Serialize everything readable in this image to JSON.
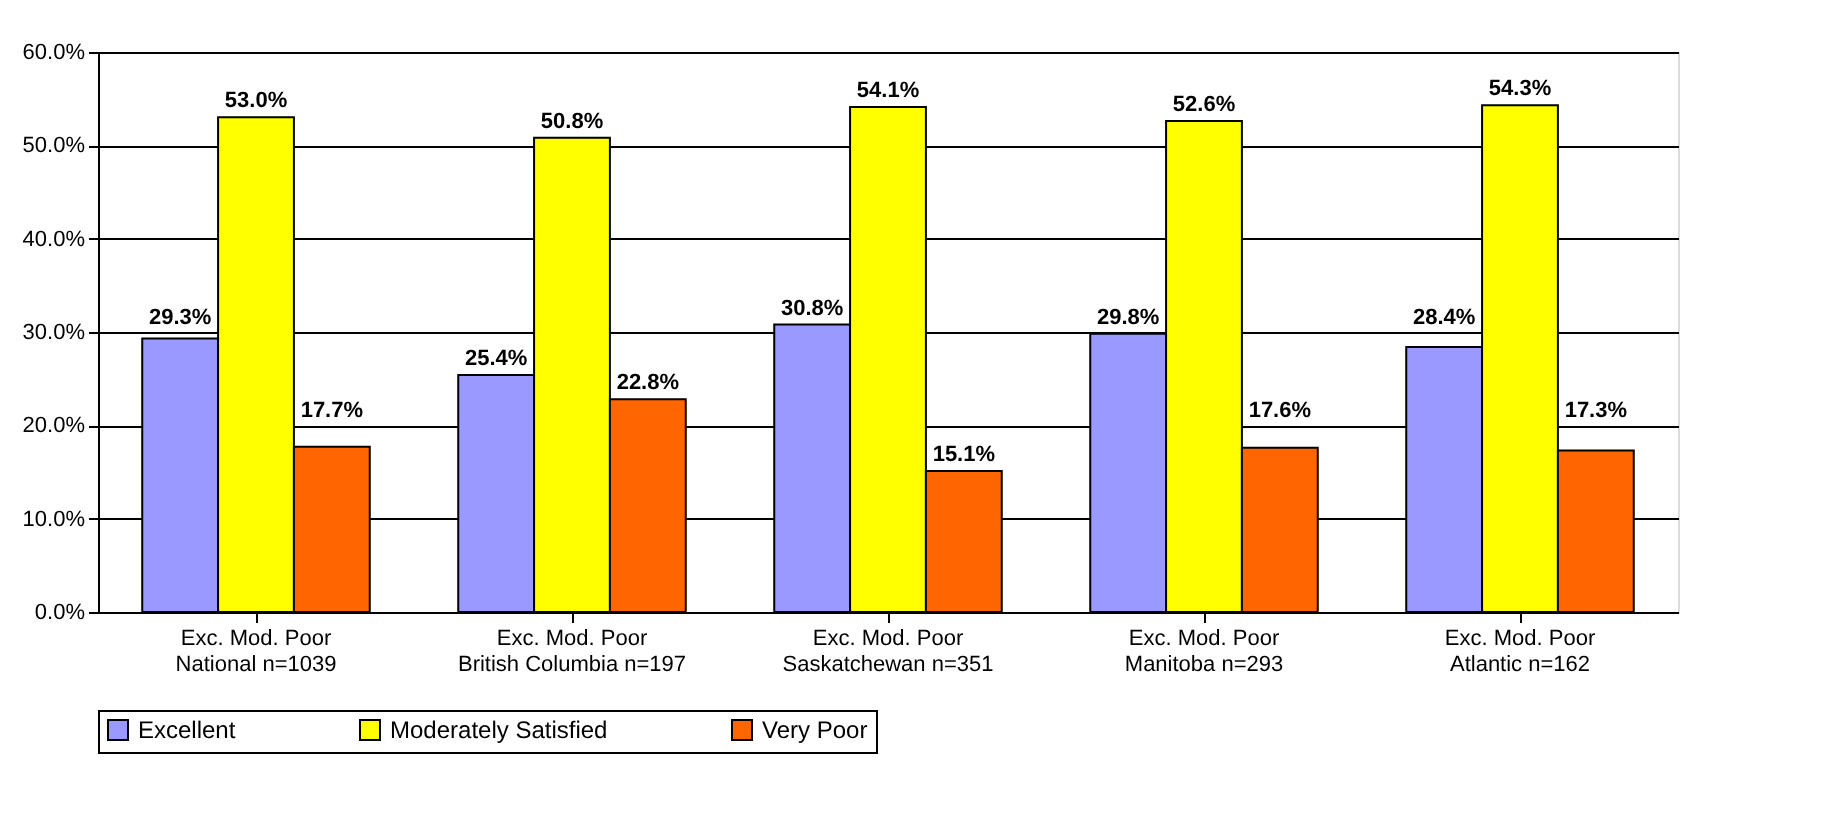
{
  "chart_data": {
    "type": "bar",
    "categories": [
      "Exc. Mod. Poor\nNational n=1039",
      "Exc. Mod. Poor\nBritish Columbia n=197",
      "Exc. Mod. Poor\nSaskatchewan n=351",
      "Exc. Mod. Poor\nManitoba n=293",
      "Exc. Mod. Poor\nAtlantic n=162"
    ],
    "series": [
      {
        "name": "Excellent",
        "color": "#9999ff",
        "values": [
          29.3,
          25.4,
          30.8,
          29.8,
          28.4
        ],
        "value_labels": [
          "29.3%",
          "25.4%",
          "30.8%",
          "29.8%",
          "28.4%"
        ]
      },
      {
        "name": "Moderately Satisfied",
        "color": "#ffff00",
        "values": [
          53.0,
          50.8,
          54.1,
          52.6,
          54.3
        ],
        "value_labels": [
          "53.0%",
          "50.8%",
          "54.1%",
          "52.6%",
          "54.3%"
        ]
      },
      {
        "name": "Very Poor",
        "color": "#ff6600",
        "values": [
          17.7,
          22.8,
          15.1,
          17.6,
          17.3
        ],
        "value_labels": [
          "17.7%",
          "22.8%",
          "15.1%",
          "17.6%",
          "17.3%"
        ]
      }
    ],
    "ylim": [
      0,
      60
    ],
    "yticks": [
      {
        "value": 0,
        "label": "0.0%"
      },
      {
        "value": 10,
        "label": "10.0%"
      },
      {
        "value": 20,
        "label": "20.0%"
      },
      {
        "value": 30,
        "label": "30.0%"
      },
      {
        "value": 40,
        "label": "40.0%"
      },
      {
        "value": 50,
        "label": "50.0%"
      },
      {
        "value": 60,
        "label": "60.0%"
      }
    ],
    "grid": "y",
    "legend": "bottom"
  }
}
